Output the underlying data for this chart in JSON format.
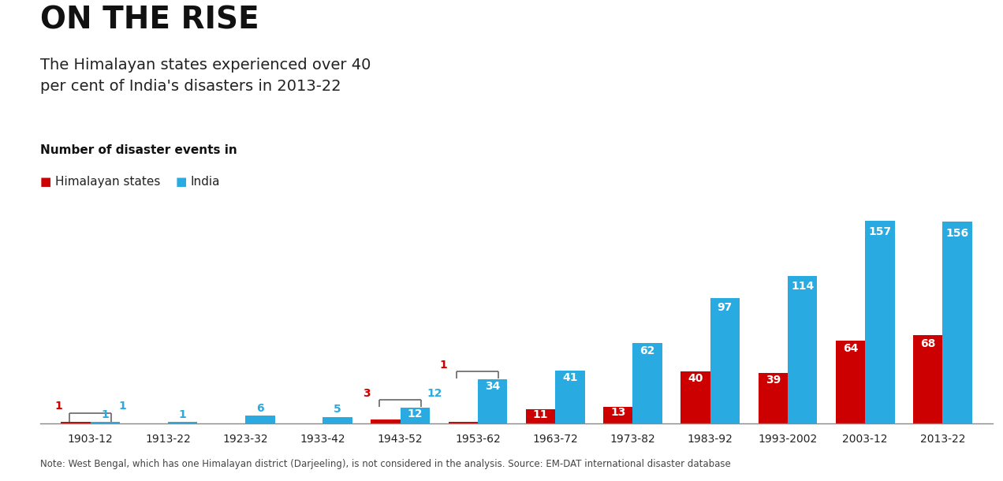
{
  "title": "ON THE RISE",
  "subtitle": "The Himalayan states experienced over 40\nper cent of India's disasters in 2013-22",
  "legend_label": "Number of disaster events in",
  "legend_himalayan": "Himalayan states",
  "legend_india": "India",
  "note": "Note: West Bengal, which has one Himalayan district (Darjeeling), is not considered in the analysis. Source: EM-DAT international disaster database",
  "categories": [
    "1903-12",
    "1913-22",
    "1923-32",
    "1933-42",
    "1943-52",
    "1953-62",
    "1963-72",
    "1973-82",
    "1983-92",
    "1993-2002",
    "2003-12",
    "2013-22"
  ],
  "india_values": [
    1,
    1,
    6,
    5,
    12,
    34,
    41,
    62,
    97,
    114,
    157,
    156
  ],
  "himalayan_values": [
    1,
    0,
    0,
    0,
    3,
    1,
    11,
    13,
    40,
    39,
    64,
    68
  ],
  "india_color": "#29ABE2",
  "himalayan_color": "#CC0000",
  "background_color": "#FFFFFF",
  "bar_width": 0.38,
  "ylim": [
    0,
    175
  ],
  "title_fontsize": 28,
  "subtitle_fontsize": 14,
  "legend_label_fontsize": 11,
  "legend_item_fontsize": 11,
  "bar_label_fontsize": 10,
  "note_fontsize": 8.5,
  "xtick_fontsize": 10
}
